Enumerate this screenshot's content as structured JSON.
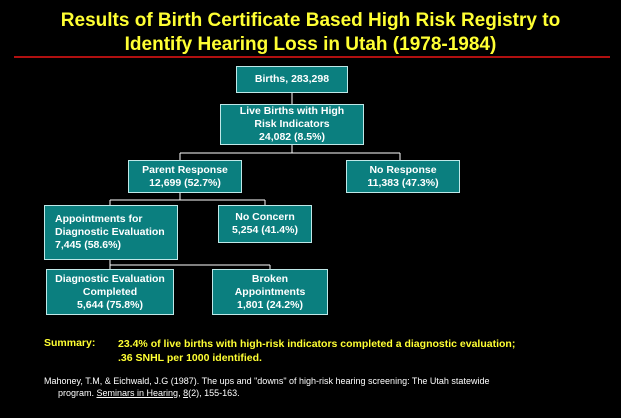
{
  "title": {
    "line1": "Results of Birth Certificate Based High Risk Registry to",
    "line2": "Identify Hearing Loss in Utah (1978-1984)"
  },
  "nodes": {
    "births": {
      "line1": "Births, 283,298"
    },
    "live_births": {
      "line1": "Live Births with High",
      "line2": "Risk Indicators",
      "line3": "24,082 (8.5%)"
    },
    "parent_response": {
      "line1": "Parent Response",
      "line2": "12,699 (52.7%)"
    },
    "no_response": {
      "line1": "No Response",
      "line2": "11,383 (47.3%)"
    },
    "appointments": {
      "line1": "Appointments for",
      "line2": "Diagnostic Evaluation",
      "line3": "7,445 (58.6%)"
    },
    "no_concern": {
      "line1": "No Concern",
      "line2": "5,254 (41.4%)"
    },
    "diag_completed": {
      "line1": "Diagnostic Evaluation",
      "line2": "Completed",
      "line3": "5,644 (75.8%)"
    },
    "broken": {
      "line1": "Broken",
      "line2": "Appointments",
      "line3": "1,801 (24.2%)"
    }
  },
  "summary": {
    "label": "Summary:",
    "line1": "23.4% of live births with high-risk indicators completed a diagnostic evaluation;",
    "line2": ".36 SNHL per 1000 identified."
  },
  "citation": {
    "part1": "Mahoney, T.M, & Eichwald, J.G (1987). The ups and \"downs\" of high-risk hearing screening: The Utah statewide",
    "part2": "program. ",
    "journal": "Seminars in Hearing",
    "part3": ", ",
    "volume": "8",
    "part4": "(2), 155-163."
  }
}
